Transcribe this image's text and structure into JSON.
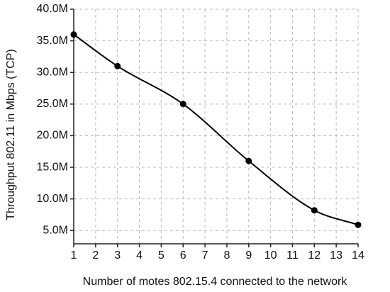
{
  "chart_data": {
    "type": "line",
    "y_label": "Throughput 802.11 in Mbps (TCP)",
    "x_label": "Number of motes 802.15.4 connected to the network",
    "x": [
      1,
      3,
      6,
      9,
      12,
      14
    ],
    "series": [
      {
        "color": "#000000",
        "values": [
          36000000,
          31000000,
          25000000,
          16000000,
          8200000,
          5900000
        ]
      }
    ],
    "xlim": [
      1,
      14
    ],
    "xticks": [
      1,
      2,
      3,
      4,
      5,
      6,
      7,
      8,
      9,
      10,
      11,
      12,
      13,
      14
    ],
    "ylim": [
      2900000,
      40000000
    ],
    "yticks": [
      {
        "value": 5000000,
        "label": "5.0M"
      },
      {
        "value": 10000000,
        "label": "10.0M"
      },
      {
        "value": 15000000,
        "label": "15.0M"
      },
      {
        "value": 20000000,
        "label": "20.0M"
      },
      {
        "value": 25000000,
        "label": "25.0M"
      },
      {
        "value": 30000000,
        "label": "30.0M"
      },
      {
        "value": 35000000,
        "label": "35.0M"
      },
      {
        "value": 40000000,
        "label": "40.0M"
      }
    ],
    "grid": true
  }
}
